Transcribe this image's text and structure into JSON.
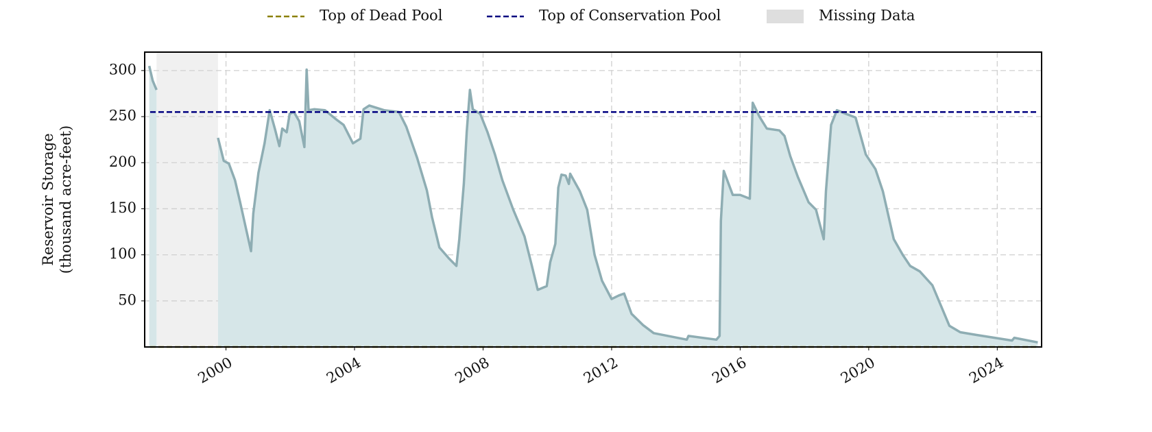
{
  "chart_data": {
    "type": "area",
    "y_label": "Reservoir Storage\n(thousand acre-feet)",
    "x": [
      1997.61,
      1997.72,
      1997.84,
      1998.8,
      1999.75,
      1999.93,
      2000.09,
      2000.28,
      2000.44,
      2000.62,
      2000.78,
      2000.85,
      2001.01,
      2001.2,
      2001.36,
      2001.52,
      2001.66,
      2001.75,
      2001.89,
      2001.98,
      2002.11,
      2002.28,
      2002.44,
      2002.51,
      2002.57,
      2002.74,
      2003.08,
      2003.43,
      2003.66,
      2003.95,
      2004.18,
      2004.28,
      2004.46,
      2004.92,
      2005.38,
      2005.61,
      2005.95,
      2006.25,
      2006.41,
      2006.64,
      2006.94,
      2007.17,
      2007.26,
      2007.4,
      2007.49,
      2007.59,
      2007.68,
      2007.91,
      2008.14,
      2008.37,
      2008.6,
      2008.94,
      2009.29,
      2009.52,
      2009.7,
      2009.98,
      2010.09,
      2010.25,
      2010.34,
      2010.44,
      2010.57,
      2010.67,
      2010.71,
      2011.01,
      2011.24,
      2011.47,
      2011.7,
      2012.0,
      2012.23,
      2012.39,
      2012.62,
      2012.97,
      2013.31,
      2014.34,
      2014.39,
      2015.26,
      2015.36,
      2015.4,
      2015.49,
      2015.77,
      2016.0,
      2016.3,
      2016.39,
      2016.6,
      2016.83,
      2017.22,
      2017.38,
      2017.56,
      2017.79,
      2018.13,
      2018.36,
      2018.6,
      2018.67,
      2018.83,
      2019.01,
      2019.29,
      2019.59,
      2019.91,
      2020.21,
      2020.44,
      2020.78,
      2021.06,
      2021.29,
      2021.59,
      2021.98,
      2022.51,
      2022.85,
      2023.36,
      2024.46,
      2024.53,
      2025.26
    ],
    "values": [
      305,
      289,
      279,
      null,
      227,
      202,
      199,
      181,
      157,
      129,
      104,
      145,
      189,
      221,
      257,
      237,
      218,
      237,
      233,
      253,
      255,
      245,
      217,
      301,
      257,
      258,
      257,
      247,
      241,
      221,
      226,
      258,
      262,
      257,
      255,
      239,
      205,
      170,
      141,
      108,
      96,
      88,
      117,
      177,
      233,
      279,
      258,
      253,
      233,
      209,
      181,
      149,
      120,
      88,
      62,
      66,
      92,
      112,
      173,
      187,
      186,
      177,
      188,
      169,
      149,
      100,
      72,
      52,
      56,
      58,
      36,
      24,
      15,
      8,
      12,
      8,
      12,
      137,
      191,
      165,
      165,
      161,
      265,
      250,
      237,
      235,
      229,
      207,
      185,
      157,
      149,
      117,
      169,
      241,
      257,
      253,
      249,
      209,
      193,
      169,
      117,
      100,
      88,
      82,
      67,
      23,
      16,
      13,
      7,
      10,
      5
    ],
    "color": "#8eadb3",
    "fill_color": "#d6e6e8",
    "reference_lines": [
      {
        "name": "Top of Dead Pool",
        "value": 0,
        "color": "#8b8000"
      },
      {
        "name": "Top of Conservation Pool",
        "value": 255,
        "color": "#000080"
      }
    ],
    "missing_data": {
      "name": "Missing Data",
      "color": "#f0f0f0",
      "legend_color": "#dedede",
      "spans": [
        [
          1997.84,
          1999.75
        ]
      ]
    },
    "xlim": [
      1997.47,
      2025.38
    ],
    "ylim": [
      0,
      320
    ],
    "xticks": [
      2000,
      2004,
      2008,
      2012,
      2016,
      2020,
      2024
    ],
    "yticks": [
      50,
      100,
      150,
      200,
      250,
      300
    ],
    "grid": true
  }
}
